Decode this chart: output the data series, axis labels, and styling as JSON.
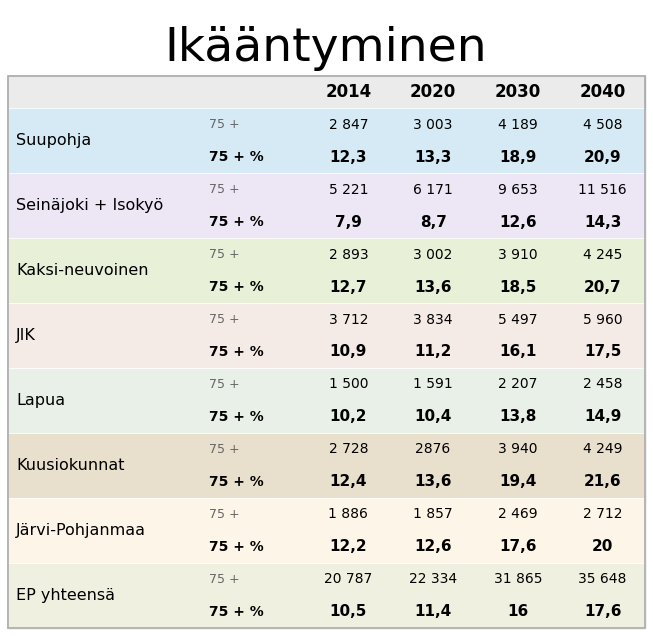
{
  "title": "Ikääntyminen",
  "rows": [
    {
      "region": "Suupohja",
      "bg_color": "#d6eaf5",
      "row1": [
        "75 +",
        "2 847",
        "3 003",
        "4 189",
        "4 508"
      ],
      "row2": [
        "75 + %",
        "12,3",
        "13,3",
        "18,9",
        "20,9"
      ]
    },
    {
      "region": "Seinäjoki + Isokyö",
      "bg_color": "#ece6f5",
      "row1": [
        "75 +",
        "5 221",
        "6 171",
        "9 653",
        "11 516"
      ],
      "row2": [
        "75 + %",
        "7,9",
        "8,7",
        "12,6",
        "14,3"
      ]
    },
    {
      "region": "Kaksi-neuvoinen",
      "bg_color": "#e8f0d8",
      "row1": [
        "75 +",
        "2 893",
        "3 002",
        "3 910",
        "4 245"
      ],
      "row2": [
        "75 + %",
        "12,7",
        "13,6",
        "18,5",
        "20,7"
      ]
    },
    {
      "region": "JIK",
      "bg_color": "#f5ebe6",
      "row1": [
        "75 +",
        "3 712",
        "3 834",
        "5 497",
        "5 960"
      ],
      "row2": [
        "75 + %",
        "10,9",
        "11,2",
        "16,1",
        "17,5"
      ]
    },
    {
      "region": "Lapua",
      "bg_color": "#e8f0e8",
      "row1": [
        "75 +",
        "1 500",
        "1 591",
        "2 207",
        "2 458"
      ],
      "row2": [
        "75 + %",
        "10,2",
        "10,4",
        "13,8",
        "14,9"
      ]
    },
    {
      "region": "Kuusiokunnat",
      "bg_color": "#e8e0cc",
      "row1": [
        "75 +",
        "2 728",
        "2876",
        "3 940",
        "4 249"
      ],
      "row2": [
        "75 + %",
        "12,4",
        "13,6",
        "19,4",
        "21,6"
      ]
    },
    {
      "region": "Järvi-Pohjanmaa",
      "bg_color": "#fdf5e8",
      "row1": [
        "75 +",
        "1 886",
        "1 857",
        "2 469",
        "2 712"
      ],
      "row2": [
        "75 + %",
        "12,2",
        "12,6",
        "17,6",
        "20"
      ]
    },
    {
      "region": "EP yhteensä",
      "bg_color": "#f0f0e0",
      "row1": [
        "75 +",
        "20 787",
        "22 334",
        "31 865",
        "35 648"
      ],
      "row2": [
        "75 + %",
        "10,5",
        "11,4",
        "16",
        "17,6"
      ]
    }
  ],
  "header_bg": "#ebebeb",
  "year_labels": [
    "2014",
    "2020",
    "2030",
    "2040"
  ]
}
